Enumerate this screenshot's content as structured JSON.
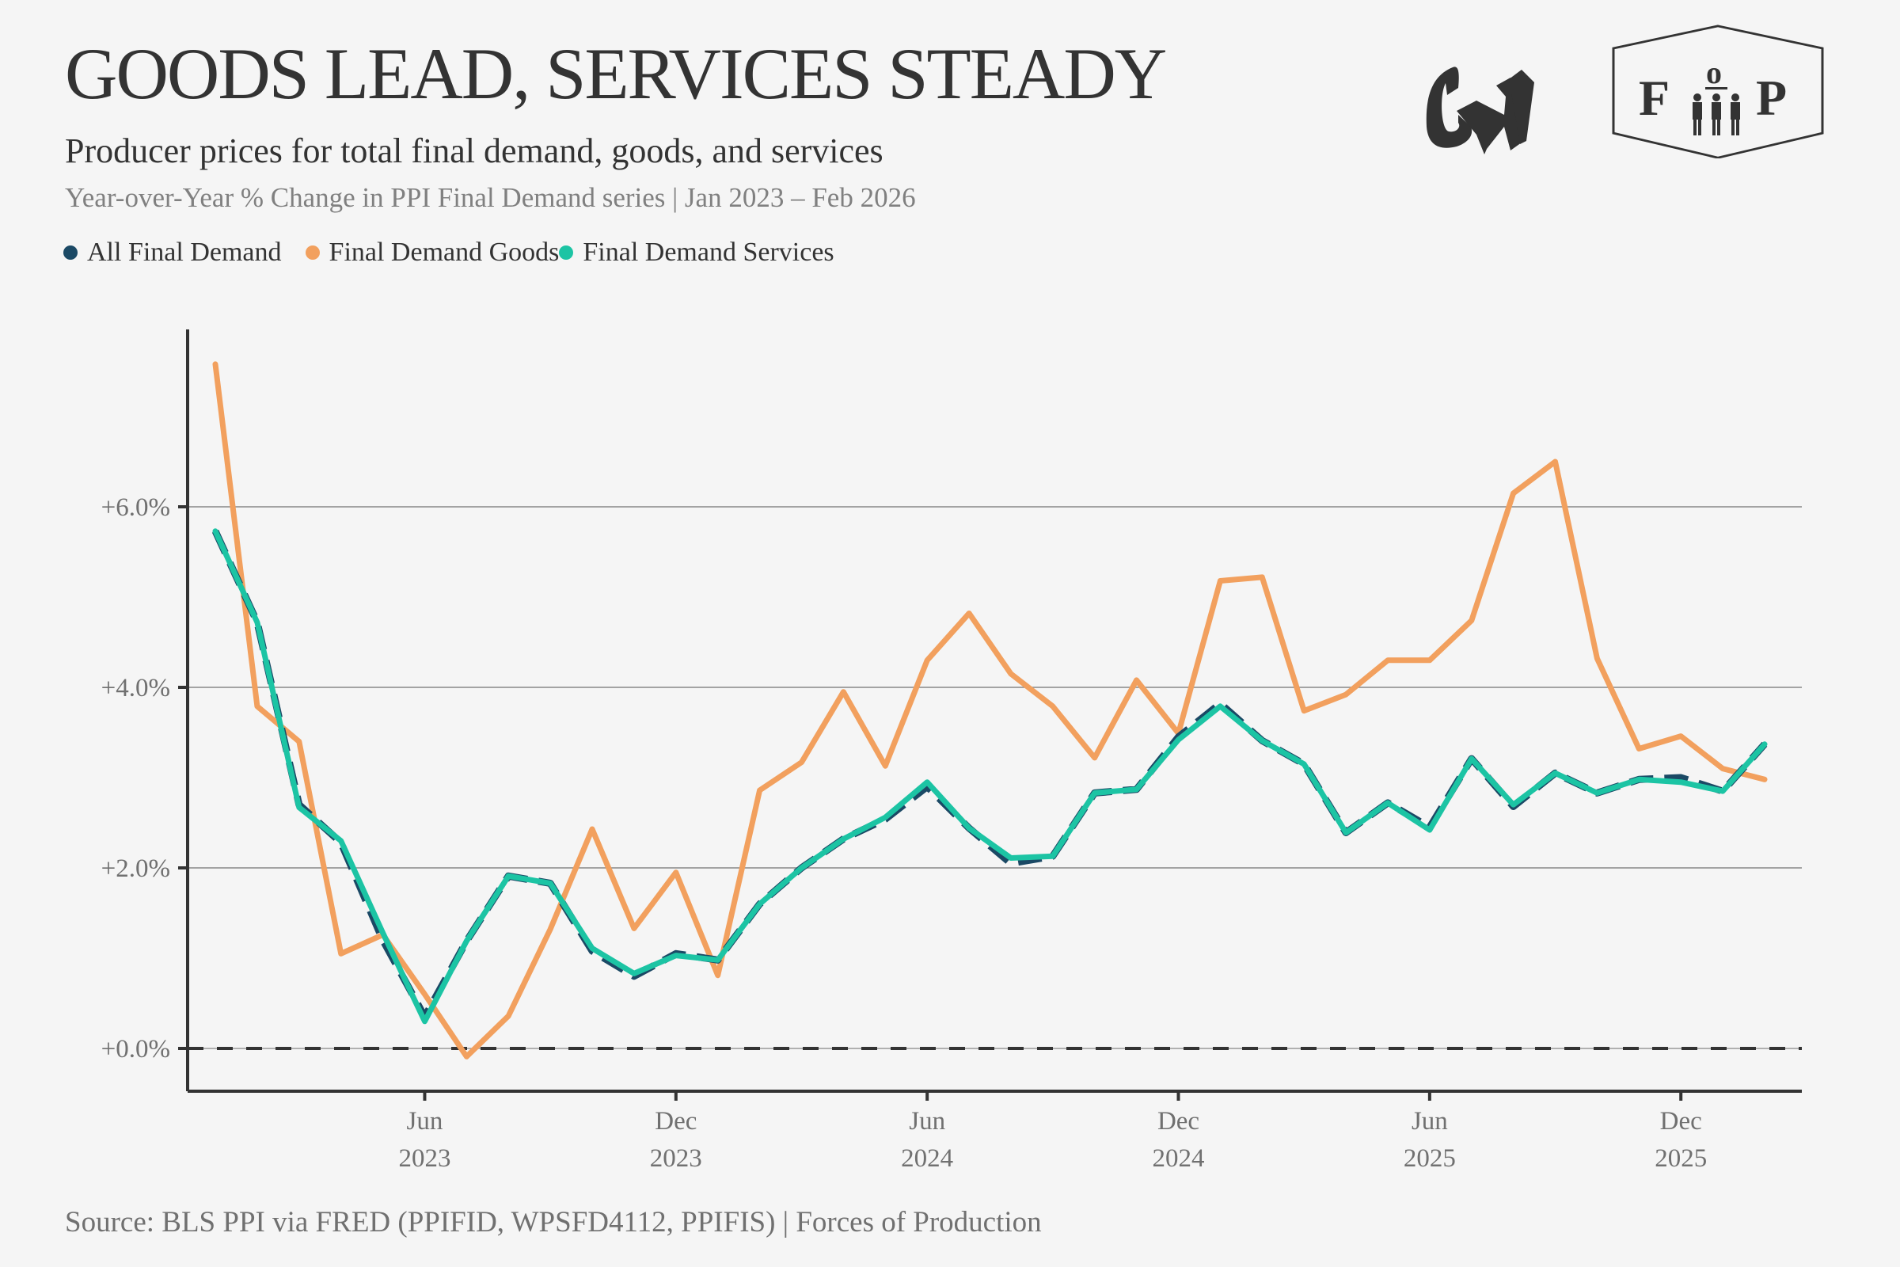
{
  "header": {
    "title": "GOODS LEAD, SERVICES STEADY",
    "subtitle": "Producer prices for total final demand, goods, and services",
    "description": "Year-over-Year % Change in PPI Final Demand series | Jan 2023 – Feb 2026"
  },
  "logos": {
    "cw": "CW",
    "fop": "FoP"
  },
  "source": "Source: BLS PPI via FRED (PPIFID, WPSFD4112, PPIFIS) | Forces of Production",
  "colors": {
    "all": "#1b4965",
    "goods": "#f2a05e",
    "services": "#1cc4a4",
    "axis": "#333333",
    "grid": "#888888"
  },
  "chart_data": {
    "type": "line",
    "title": "GOODS LEAD, SERVICES STEADY",
    "xlabel": "",
    "ylabel": "",
    "ylim": [
      -0.5,
      7.6
    ],
    "grid": true,
    "legend_position": "top-left",
    "x": [
      "2023-01",
      "2023-02",
      "2023-03",
      "2023-04",
      "2023-05",
      "2023-06",
      "2023-07",
      "2023-08",
      "2023-09",
      "2023-10",
      "2023-11",
      "2023-12",
      "2024-01",
      "2024-02",
      "2024-03",
      "2024-04",
      "2024-05",
      "2024-06",
      "2024-07",
      "2024-08",
      "2024-09",
      "2024-10",
      "2024-11",
      "2024-12",
      "2025-01",
      "2025-02",
      "2025-03",
      "2025-04",
      "2025-05",
      "2025-06",
      "2025-07",
      "2025-08",
      "2025-09",
      "2025-10",
      "2025-11",
      "2025-12",
      "2026-01",
      "2026-02"
    ],
    "yticks": [
      {
        "value": 0,
        "label": "+0.0%"
      },
      {
        "value": 2,
        "label": "+2.0%"
      },
      {
        "value": 4,
        "label": "+4.0%"
      },
      {
        "value": 6,
        "label": "+6.0%"
      }
    ],
    "xticks": [
      {
        "index": 5,
        "month": "Jun",
        "year": "2023"
      },
      {
        "index": 11,
        "month": "Dec",
        "year": "2023"
      },
      {
        "index": 17,
        "month": "Jun",
        "year": "2024"
      },
      {
        "index": 23,
        "month": "Dec",
        "year": "2024"
      },
      {
        "index": 29,
        "month": "Jun",
        "year": "2025"
      },
      {
        "index": 35,
        "month": "Dec",
        "year": "2025"
      }
    ],
    "series": [
      {
        "name": "All Final Demand",
        "color": "#1b4965",
        "dashed": true,
        "values": [
          5.73,
          4.72,
          2.7,
          2.28,
          1.2,
          0.35,
          1.19,
          1.91,
          1.83,
          1.08,
          0.8,
          1.05,
          0.98,
          1.6,
          2.0,
          2.32,
          2.54,
          2.9,
          2.44,
          2.05,
          2.13,
          2.83,
          2.87,
          3.45,
          3.82,
          3.41,
          3.15,
          2.39,
          2.72,
          2.45,
          3.21,
          2.68,
          3.05,
          2.83,
          2.98,
          3.0,
          2.85,
          3.37
        ]
      },
      {
        "name": "Final Demand Goods",
        "color": "#f2a05e",
        "dashed": false,
        "values": [
          7.58,
          3.79,
          3.4,
          1.05,
          1.26,
          0.6,
          -0.09,
          0.36,
          1.32,
          2.43,
          1.33,
          1.95,
          0.81,
          2.86,
          3.17,
          3.95,
          3.13,
          4.3,
          4.82,
          4.15,
          3.79,
          3.22,
          4.08,
          3.49,
          5.18,
          5.22,
          3.74,
          3.92,
          4.3,
          4.3,
          4.74,
          6.15,
          6.5,
          4.32,
          3.32,
          3.46,
          3.1,
          2.98
        ]
      },
      {
        "name": "Final Demand Services",
        "color": "#1cc4a4",
        "dashed": false,
        "values": [
          5.73,
          4.72,
          2.67,
          2.3,
          1.28,
          0.3,
          1.19,
          1.91,
          1.83,
          1.11,
          0.83,
          1.03,
          0.98,
          1.6,
          2.0,
          2.32,
          2.56,
          2.95,
          2.44,
          2.11,
          2.13,
          2.83,
          2.87,
          3.42,
          3.79,
          3.41,
          3.15,
          2.39,
          2.72,
          2.42,
          3.21,
          2.7,
          3.05,
          2.83,
          2.98,
          2.95,
          2.85,
          3.37
        ]
      }
    ]
  }
}
